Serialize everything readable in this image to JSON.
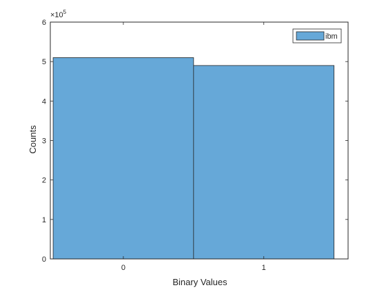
{
  "chart_data": {
    "type": "bar",
    "categories": [
      "0",
      "1"
    ],
    "bar_edges": [
      -0.5,
      0.5,
      1.5
    ],
    "series": [
      {
        "name": "ibm",
        "values": [
          510000,
          490000
        ],
        "color": "#66a8d8"
      }
    ],
    "xlabel": "Binary Values",
    "ylabel": "Counts",
    "xlim": [
      -0.52,
      1.6
    ],
    "ylim": [
      0,
      600000
    ],
    "y_ticks": [
      0,
      100000,
      200000,
      300000,
      400000,
      500000,
      600000
    ],
    "y_tick_labels": [
      "0",
      "1",
      "2",
      "3",
      "4",
      "5",
      "6"
    ],
    "y_multiplier": {
      "base": "×10",
      "exponent": "5"
    },
    "x_ticks": [
      0,
      1
    ],
    "x_tick_labels": [
      "0",
      "1"
    ],
    "legend": {
      "label": "ibm",
      "position": "top-right"
    },
    "grid": false
  }
}
